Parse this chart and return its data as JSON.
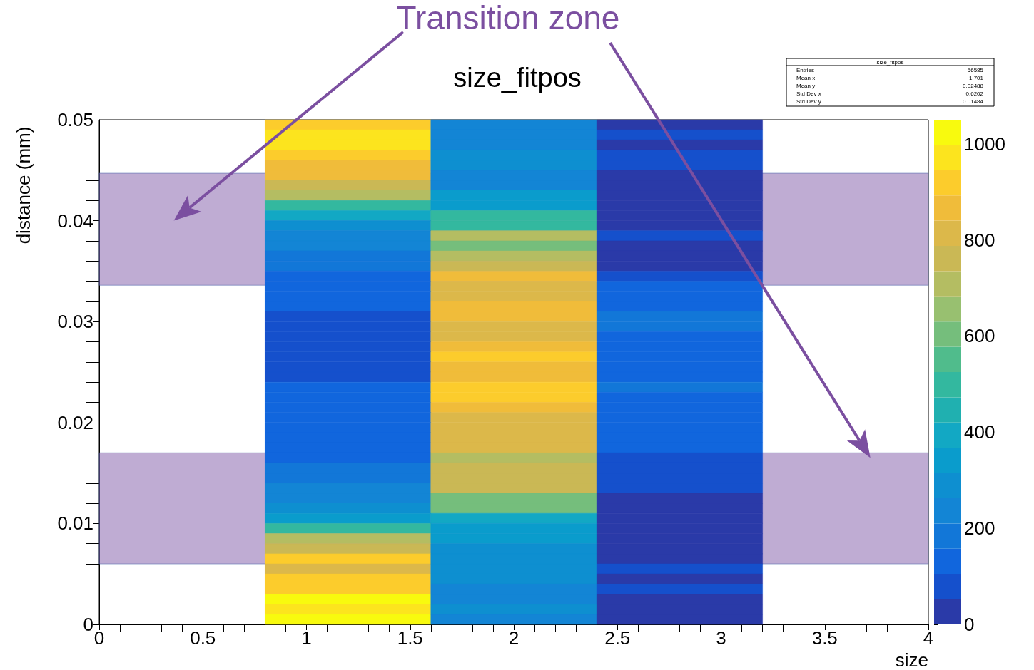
{
  "chart_data": {
    "type": "heatmap",
    "title": "size_fitpos",
    "xlabel": "size",
    "ylabel": "distance (mm)",
    "cells": [
      [
        null,
        920,
        230,
        30,
        null
      ],
      [
        null,
        970,
        230,
        80,
        null
      ],
      [
        null,
        970,
        230,
        30,
        null
      ],
      [
        null,
        920,
        290,
        80,
        null
      ],
      [
        null,
        870,
        290,
        80,
        null
      ],
      [
        null,
        870,
        250,
        40,
        null
      ],
      [
        null,
        780,
        250,
        40,
        null
      ],
      [
        null,
        720,
        330,
        40,
        null
      ],
      [
        null,
        500,
        330,
        40,
        null
      ],
      [
        null,
        400,
        500,
        40,
        null
      ],
      [
        null,
        300,
        500,
        40,
        null
      ],
      [
        null,
        230,
        720,
        80,
        null
      ],
      [
        null,
        230,
        600,
        40,
        null
      ],
      [
        null,
        170,
        720,
        40,
        null
      ],
      [
        null,
        170,
        780,
        40,
        null
      ],
      [
        null,
        120,
        870,
        80,
        null
      ],
      [
        null,
        130,
        800,
        130,
        null
      ],
      [
        null,
        130,
        800,
        130,
        null
      ],
      [
        null,
        130,
        870,
        130,
        null
      ],
      [
        null,
        80,
        870,
        180,
        null
      ],
      [
        null,
        80,
        800,
        180,
        null
      ],
      [
        null,
        80,
        800,
        130,
        null
      ],
      [
        null,
        80,
        870,
        130,
        null
      ],
      [
        null,
        80,
        920,
        130,
        null
      ],
      [
        null,
        80,
        870,
        130,
        null
      ],
      [
        null,
        80,
        870,
        130,
        null
      ],
      [
        null,
        130,
        920,
        180,
        null
      ],
      [
        null,
        130,
        920,
        130,
        null
      ],
      [
        null,
        130,
        870,
        130,
        null
      ],
      [
        null,
        130,
        800,
        130,
        null
      ],
      [
        null,
        130,
        800,
        130,
        null
      ],
      [
        null,
        130,
        800,
        130,
        null
      ],
      [
        null,
        130,
        800,
        130,
        null
      ],
      [
        null,
        120,
        720,
        80,
        null
      ],
      [
        null,
        170,
        780,
        80,
        null
      ],
      [
        null,
        170,
        780,
        80,
        null
      ],
      [
        null,
        230,
        780,
        80,
        null
      ],
      [
        null,
        230,
        600,
        40,
        null
      ],
      [
        null,
        300,
        600,
        40,
        null
      ],
      [
        null,
        350,
        400,
        40,
        null
      ],
      [
        null,
        500,
        330,
        40,
        null
      ],
      [
        null,
        720,
        330,
        40,
        null
      ],
      [
        null,
        780,
        270,
        40,
        null
      ],
      [
        null,
        900,
        270,
        10,
        null
      ],
      [
        null,
        800,
        290,
        80,
        null
      ],
      [
        null,
        920,
        290,
        30,
        null
      ],
      [
        null,
        920,
        230,
        80,
        null
      ],
      [
        null,
        1020,
        230,
        30,
        null
      ],
      [
        null,
        970,
        290,
        30,
        null
      ],
      [
        null,
        1020,
        230,
        30,
        null
      ]
    ],
    "clim": [
      0,
      1050
    ],
    "cticks": [
      0,
      200,
      400,
      600,
      800,
      1000
    ],
    "colors": [
      "#2a3aa8",
      "#1550cc",
      "#1166dd",
      "#1277d8",
      "#1385d5",
      "#0e8fd0",
      "#0a9ccc",
      "#12a8c4",
      "#20b0b0",
      "#33b89f",
      "#50bc8c",
      "#75be7c",
      "#98c070",
      "#b4bd62",
      "#cab855",
      "#dcb84a",
      "#f0bc3a",
      "#fccc2c",
      "#fce41e",
      "#f8fa0e"
    ],
    "xlim": [
      0,
      4
    ],
    "xticks": [
      0,
      0.5,
      1,
      1.5,
      2,
      2.5,
      3,
      3.5,
      4
    ],
    "ylim": [
      0,
      0.05
    ],
    "yticks": [
      0,
      0.01,
      0.02,
      0.03,
      0.04,
      0.05
    ],
    "bands": [
      {
        "axis": "y",
        "from": 0.0336,
        "to": 0.0447,
        "color": "#7f5aa8"
      },
      {
        "axis": "y",
        "from": 0.006,
        "to": 0.017,
        "color": "#7f5aa8"
      }
    ],
    "annotations": [
      "Transition zone",
      "size_fitpos",
      "Entries 56585",
      "Mean x 1.701",
      "Mean y 0.02488",
      "Std Dev x 0.6202",
      "Std Dev y 0.01484"
    ]
  }
}
